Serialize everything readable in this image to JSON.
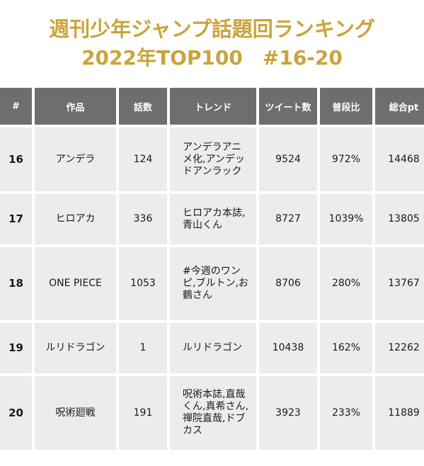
{
  "title_line1": "週刊少年ジャンプ話題回ランキング",
  "title_line2": "2022年TOP100　#16-20",
  "headers": [
    "#",
    "作品",
    "話数",
    "トレンド",
    "ツイート数",
    "普段比",
    "総合pt"
  ],
  "rows": [
    {
      "rank": "16",
      "work": "アンデラ",
      "episode": "124",
      "trend": "アンデラアニメ化,アンデッドアンラック",
      "tweets": "9524",
      "ratio": "972%",
      "points": "14468"
    },
    {
      "rank": "17",
      "work": "ヒロアカ",
      "episode": "336",
      "trend": "ヒロアカ本誌,青山くん",
      "tweets": "8727",
      "ratio": "1039%",
      "points": "13805"
    },
    {
      "rank": "18",
      "work": "ONE PIECE",
      "episode": "1053",
      "trend": "#今週のワンピ,ブルトン,お鶴さん",
      "tweets": "8706",
      "ratio": "280%",
      "points": "13767"
    },
    {
      "rank": "19",
      "work": "ルリドラゴン",
      "episode": "1",
      "trend": "ルリドラゴン",
      "tweets": "10438",
      "ratio": "162%",
      "points": "12262"
    },
    {
      "rank": "20",
      "work": "呪術廻戦",
      "episode": "191",
      "trend": "呪術本誌,直哉くん,真希さん,禪院直哉,ドブカス",
      "tweets": "3923",
      "ratio": "233%",
      "points": "11889"
    }
  ]
}
